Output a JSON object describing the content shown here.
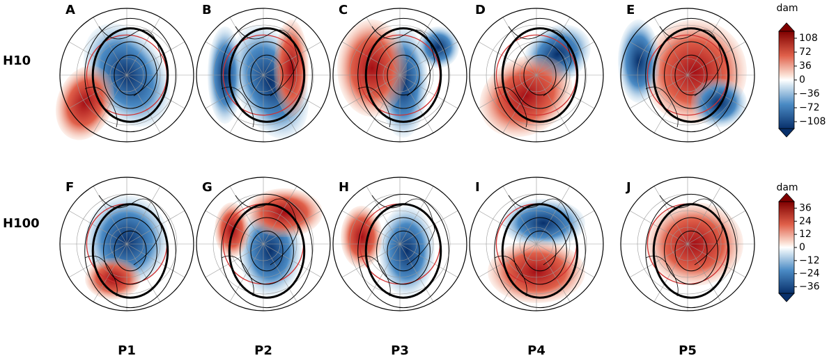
{
  "panels": [
    {
      "label": "A"
    },
    {
      "label": "B"
    },
    {
      "label": "C"
    },
    {
      "label": "D"
    },
    {
      "label": "E"
    },
    {
      "label": "F"
    },
    {
      "label": "G"
    },
    {
      "label": "H"
    },
    {
      "label": "I"
    },
    {
      "label": "J"
    }
  ],
  "row_labels": [
    "H10",
    "H100"
  ],
  "column_labels": [
    "P1",
    "P2",
    "P3",
    "P4",
    "P5"
  ],
  "colorbars": [
    {
      "unit": "dam",
      "lim": [
        -126,
        126
      ],
      "ticks": [
        {
          "value": 108,
          "label": "108"
        },
        {
          "value": 72,
          "label": "72"
        },
        {
          "value": 36,
          "label": "36"
        },
        {
          "value": 0,
          "label": "0"
        },
        {
          "value": -36,
          "label": "−36"
        },
        {
          "value": -72,
          "label": "−72"
        },
        {
          "value": -108,
          "label": "−108"
        }
      ]
    },
    {
      "unit": "dam",
      "lim": [
        -42,
        42
      ],
      "ticks": [
        {
          "value": 36,
          "label": "36"
        },
        {
          "value": 24,
          "label": "24"
        },
        {
          "value": 12,
          "label": "12"
        },
        {
          "value": 0,
          "label": "0"
        },
        {
          "value": -12,
          "label": "−12"
        },
        {
          "value": -24,
          "label": "−24"
        },
        {
          "value": -36,
          "label": "−36"
        }
      ]
    }
  ]
}
